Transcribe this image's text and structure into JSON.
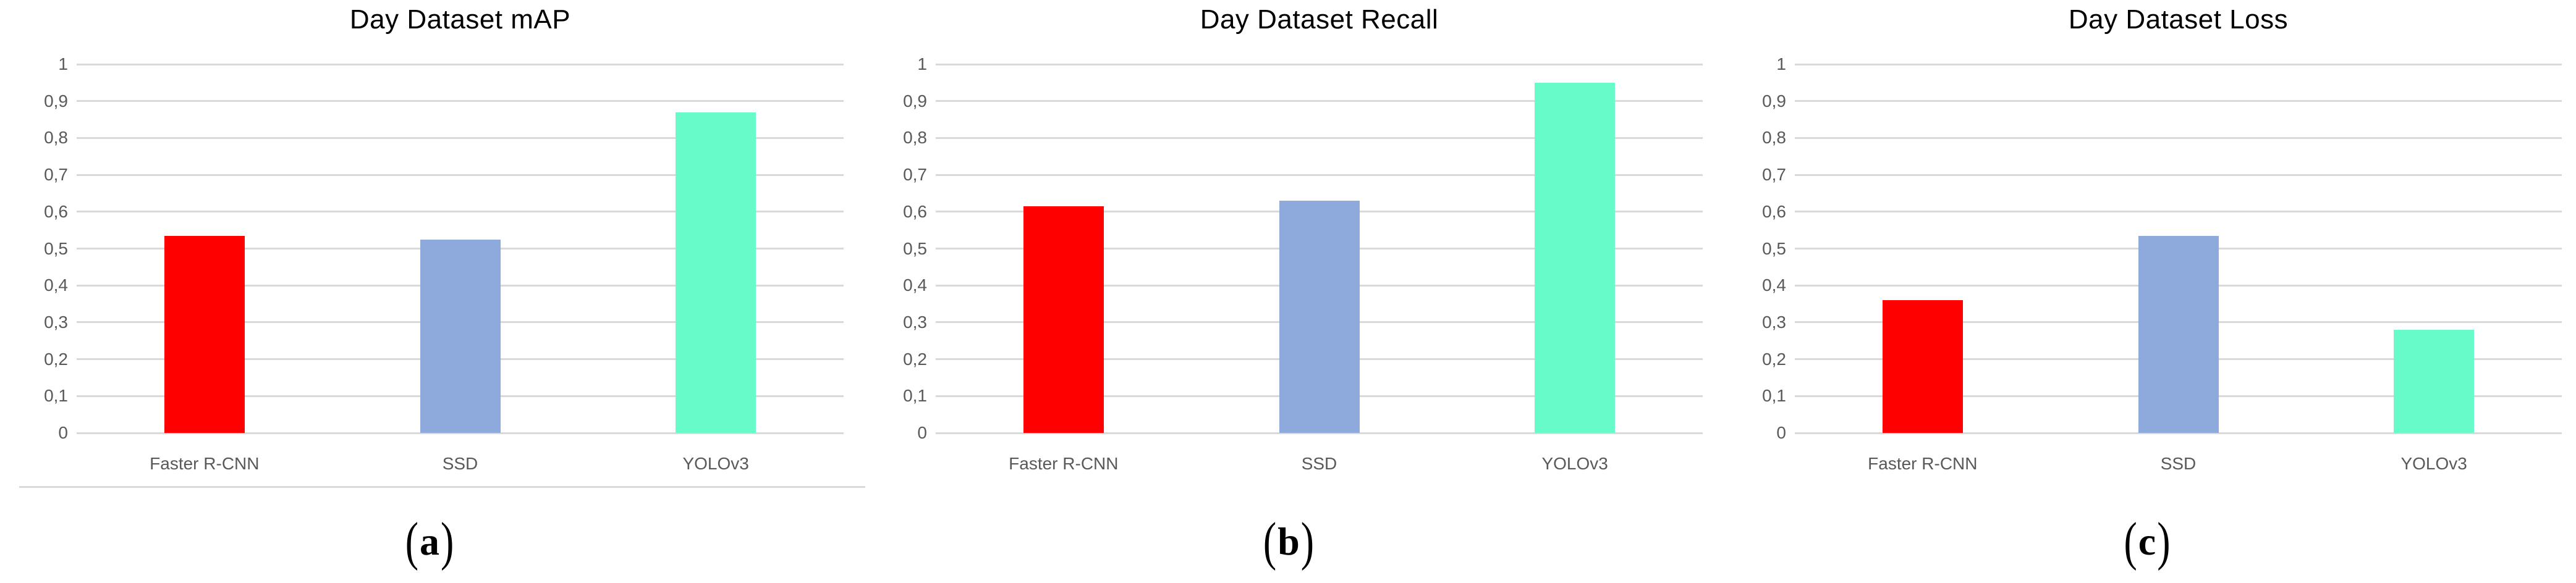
{
  "figure": {
    "background": "#ffffff",
    "description": "Three bar charts comparing object detectors on the Day Dataset"
  },
  "colors": {
    "faster_rcnn_bar": "#fe0000",
    "ssd_bar": "#8ea9db",
    "yolov3_bar": "#66fbc9",
    "gridline": "#d9d9d9",
    "axis_text": "#595959",
    "title_text": "#000000",
    "caption_text": "#000000",
    "divider_line": "#d9d9d9"
  },
  "chart_data": [
    {
      "type": "bar",
      "title": "Day Dataset mAP",
      "categories": [
        "Faster R-CNN",
        "SSD",
        "YOLOv3"
      ],
      "values": [
        0.535,
        0.525,
        0.87
      ],
      "bar_colors": [
        "#fe0000",
        "#8ea9db",
        "#66fbc9"
      ],
      "xlabel": "",
      "ylabel": "",
      "ylim": [
        0,
        1
      ],
      "ytick_labels": [
        "0",
        "0,1",
        "0,2",
        "0,3",
        "0,4",
        "0,5",
        "0,6",
        "0,7",
        "0,8",
        "0,9",
        "1"
      ],
      "grid": true,
      "legend": "none",
      "caption": {
        "prefix": "(",
        "letter": "a",
        "suffix": ")"
      },
      "divider_under_axis": true
    },
    {
      "type": "bar",
      "title": "Day Dataset Recall",
      "categories": [
        "Faster R-CNN",
        "SSD",
        "YOLOv3"
      ],
      "values": [
        0.615,
        0.63,
        0.95
      ],
      "bar_colors": [
        "#fe0000",
        "#8ea9db",
        "#66fbc9"
      ],
      "xlabel": "",
      "ylabel": "",
      "ylim": [
        0,
        1
      ],
      "ytick_labels": [
        "0",
        "0,1",
        "0,2",
        "0,3",
        "0,4",
        "0,5",
        "0,6",
        "0,7",
        "0,8",
        "0,9",
        "1"
      ],
      "grid": true,
      "legend": "none",
      "caption": {
        "prefix": "(",
        "letter": "b",
        "suffix": ")"
      },
      "divider_under_axis": false
    },
    {
      "type": "bar",
      "title": "Day Dataset Loss",
      "categories": [
        "Faster R-CNN",
        "SSD",
        "YOLOv3"
      ],
      "values": [
        0.36,
        0.535,
        0.28
      ],
      "bar_colors": [
        "#fe0000",
        "#8ea9db",
        "#66fbc9"
      ],
      "xlabel": "",
      "ylabel": "",
      "ylim": [
        0,
        1
      ],
      "ytick_labels": [
        "0",
        "0,1",
        "0,2",
        "0,3",
        "0,4",
        "0,5",
        "0,6",
        "0,7",
        "0,8",
        "0,9",
        "1"
      ],
      "grid": true,
      "legend": "none",
      "caption": {
        "prefix": "(",
        "letter": "c",
        "suffix": ")"
      },
      "divider_under_axis": false
    }
  ]
}
